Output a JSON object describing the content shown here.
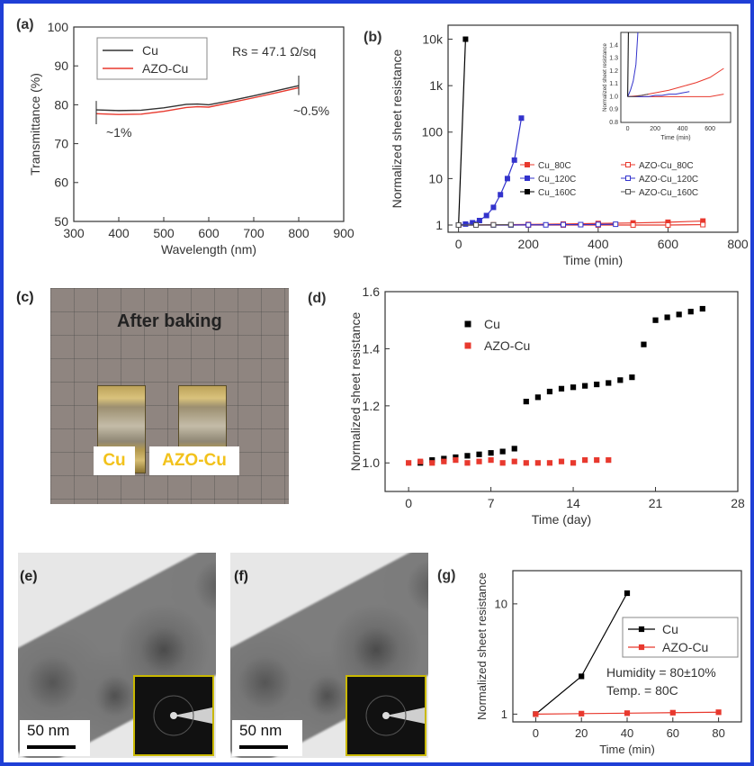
{
  "panels": {
    "a": "(a)",
    "b": "(b)",
    "c": "(c)",
    "d": "(d)",
    "e": "(e)",
    "f": "(f)",
    "g": "(g)"
  },
  "colors": {
    "frame": "#1f3fd6",
    "black_series": "#333333",
    "red_series": "#e8392e",
    "blue_series": "#3333cc"
  },
  "photo_c": {
    "title": "After baking",
    "tag_cu": "Cu",
    "tag_azo": "AZO-Cu"
  },
  "tem_e": {
    "scale": "50 nm"
  },
  "tem_f": {
    "scale": "50 nm"
  },
  "chart_data": [
    {
      "id": "a",
      "type": "line",
      "xlabel": "Wavelength (nm)",
      "ylabel": "Transmittance (%)",
      "xlim": [
        300,
        900
      ],
      "ylim": [
        50,
        100
      ],
      "xticks": [
        300,
        400,
        500,
        600,
        700,
        800,
        900
      ],
      "yticks": [
        50,
        60,
        70,
        80,
        90,
        100
      ],
      "annotation_rs": "Rs = 47.1 Ω/sq",
      "annotation_left": "~1%",
      "annotation_right": "~0.5%",
      "series": [
        {
          "name": "Cu",
          "color": "#333333",
          "x": [
            350,
            400,
            450,
            500,
            550,
            575,
            600,
            650,
            700,
            750,
            800
          ],
          "y": [
            78.7,
            78.5,
            78.6,
            79.2,
            80.1,
            80.2,
            80.0,
            81.1,
            82.3,
            83.6,
            84.9
          ]
        },
        {
          "name": "AZO-Cu",
          "color": "#e8392e",
          "x": [
            350,
            400,
            450,
            500,
            550,
            575,
            600,
            650,
            700,
            750,
            800
          ],
          "y": [
            77.7,
            77.5,
            77.6,
            78.3,
            79.3,
            79.5,
            79.4,
            80.6,
            81.8,
            83.1,
            84.4
          ]
        }
      ]
    },
    {
      "id": "b",
      "type": "line",
      "xlabel": "Time (min)",
      "ylabel": "Normalized sheet resistance",
      "yscale": "log",
      "xlim": [
        -30,
        800
      ],
      "ylim": [
        0.7,
        20000
      ],
      "xticks": [
        0,
        200,
        400,
        600,
        800
      ],
      "yticks": [
        1,
        10,
        100,
        1000,
        10000
      ],
      "ytick_labels": [
        "1",
        "10",
        "100",
        "1k",
        "10k"
      ],
      "series": [
        {
          "name": "Cu_80C",
          "color": "#e8392e",
          "marker": "filled",
          "x": [
            0,
            100,
            200,
            300,
            400,
            500,
            600,
            700
          ],
          "y": [
            1,
            1.01,
            1.03,
            1.05,
            1.08,
            1.11,
            1.15,
            1.22
          ]
        },
        {
          "name": "AZO-Cu_80C",
          "color": "#e8392e",
          "marker": "open",
          "x": [
            0,
            100,
            200,
            300,
            400,
            500,
            600,
            700
          ],
          "y": [
            1,
            1.0,
            1.0,
            1.0,
            1.0,
            1.0,
            1.0,
            1.02
          ]
        },
        {
          "name": "Cu_120C",
          "color": "#3333cc",
          "marker": "filled",
          "x": [
            0,
            20,
            40,
            60,
            80,
            100,
            120,
            140,
            160,
            180
          ],
          "y": [
            1,
            1.05,
            1.12,
            1.25,
            1.6,
            2.4,
            4.5,
            10,
            25,
            200
          ]
        },
        {
          "name": "AZO-Cu_120C",
          "color": "#3333cc",
          "marker": "open",
          "x": [
            0,
            50,
            100,
            150,
            200,
            250,
            300,
            350,
            400,
            450
          ],
          "y": [
            1,
            1.0,
            1.0,
            1.0,
            1.01,
            1.01,
            1.02,
            1.02,
            1.03,
            1.04
          ]
        },
        {
          "name": "Cu_160C",
          "color": "#000000",
          "marker": "filled",
          "x": [
            0,
            20
          ],
          "y": [
            1,
            10000
          ]
        },
        {
          "name": "AZO-Cu_160C",
          "color": "#555555",
          "marker": "open",
          "x": [
            0,
            50,
            100,
            150
          ],
          "y": [
            1,
            1.0,
            1.01,
            1.02
          ]
        }
      ],
      "inset": {
        "xlabel": "Time (min)",
        "ylabel": "Normalized sheet resistance",
        "xlim": [
          -50,
          750
        ],
        "ylim": [
          0.8,
          1.5
        ],
        "xticks": [
          0,
          200,
          400,
          600
        ],
        "yticks": [
          0.8,
          0.9,
          1.0,
          1.1,
          1.2,
          1.3,
          1.4
        ]
      }
    },
    {
      "id": "d",
      "type": "scatter",
      "xlabel": "Time (day)",
      "ylabel": "Normalized sheet resistance",
      "xlim": [
        -2,
        28
      ],
      "ylim": [
        0.9,
        1.6
      ],
      "xticks": [
        0,
        7,
        14,
        21,
        28
      ],
      "yticks": [
        1.0,
        1.2,
        1.4,
        1.6
      ],
      "series": [
        {
          "name": "Cu",
          "color": "#000000",
          "x": [
            1,
            2,
            3,
            4,
            5,
            6,
            7,
            8,
            9,
            10,
            11,
            12,
            13,
            14,
            15,
            16,
            17,
            18,
            19,
            20,
            21,
            22,
            23,
            24,
            25
          ],
          "y": [
            1.0,
            1.01,
            1.015,
            1.02,
            1.025,
            1.03,
            1.035,
            1.04,
            1.05,
            1.215,
            1.23,
            1.25,
            1.26,
            1.265,
            1.27,
            1.275,
            1.28,
            1.29,
            1.3,
            1.415,
            1.5,
            1.51,
            1.52,
            1.53,
            1.54
          ]
        },
        {
          "name": "AZO-Cu",
          "color": "#e8392e",
          "x": [
            0,
            1,
            2,
            3,
            4,
            5,
            6,
            7,
            8,
            9,
            10,
            11,
            12,
            13,
            14,
            15,
            16,
            17
          ],
          "y": [
            1.0,
            1.005,
            1.0,
            1.005,
            1.01,
            1.0,
            1.005,
            1.01,
            1.0,
            1.005,
            1.0,
            1.0,
            1.0,
            1.005,
            1.0,
            1.01,
            1.01,
            1.01
          ]
        }
      ]
    },
    {
      "id": "g",
      "type": "line",
      "xlabel": "Time (min)",
      "ylabel": "Normalized sheet resistance",
      "yscale": "log",
      "xlim": [
        -10,
        90
      ],
      "ylim": [
        0.85,
        20
      ],
      "xticks": [
        0,
        20,
        40,
        60,
        80
      ],
      "yticks": [
        1,
        10
      ],
      "annotation_1": "Humidity = 80±10%",
      "annotation_2": "Temp. = 80C",
      "series": [
        {
          "name": "Cu",
          "color": "#000000",
          "x": [
            0,
            20,
            40
          ],
          "y": [
            1,
            2.2,
            12.5
          ]
        },
        {
          "name": "AZO-Cu",
          "color": "#e8392e",
          "x": [
            0,
            20,
            40,
            60,
            80
          ],
          "y": [
            1,
            1.01,
            1.02,
            1.03,
            1.04
          ]
        }
      ]
    }
  ]
}
